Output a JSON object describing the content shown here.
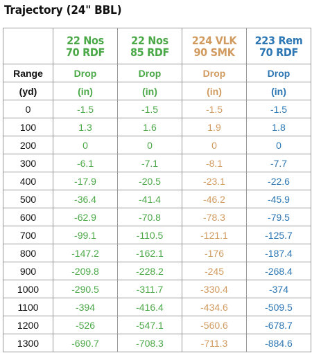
{
  "title": "Trajectory (24\" BBL)",
  "colors": {
    "green": "#4aa847",
    "orange": "#d19a5f",
    "blue": "#2b76b3"
  },
  "columns": [
    {
      "line1": "22 Nos",
      "line2": "70 RDF",
      "color": "green"
    },
    {
      "line1": "22 Nos",
      "line2": "85 RDF",
      "color": "green"
    },
    {
      "line1": "224 VLK",
      "line2": "90 SMK",
      "color": "orange"
    },
    {
      "line1": "223 Rem",
      "line2": "70 RDF",
      "color": "blue"
    }
  ],
  "label_row1": {
    "range": "Range",
    "drop": "Drop"
  },
  "label_row2": {
    "range": "(yd)",
    "unit": "(in)"
  },
  "rows": [
    {
      "range": "0",
      "values": [
        "-1.5",
        "-1.5",
        "-1.5",
        "-1.5"
      ]
    },
    {
      "range": "100",
      "values": [
        "1.3",
        "1.6",
        "1.9",
        "1.8"
      ]
    },
    {
      "range": "200",
      "values": [
        "0",
        "0",
        "0",
        "0"
      ]
    },
    {
      "range": "300",
      "values": [
        "-6.1",
        "-7.1",
        "-8.1",
        "-7.7"
      ]
    },
    {
      "range": "400",
      "values": [
        "-17.9",
        "-20.5",
        "-23.1",
        "-22.6"
      ]
    },
    {
      "range": "500",
      "values": [
        "-36.4",
        "-41.4",
        "-46.2",
        "-45.9"
      ]
    },
    {
      "range": "600",
      "values": [
        "-62.9",
        "-70.8",
        "-78.3",
        "-79.5"
      ]
    },
    {
      "range": "700",
      "values": [
        "-99.1",
        "-110.5",
        "-121.1",
        "-125.7"
      ]
    },
    {
      "range": "800",
      "values": [
        "-147.2",
        "-162.1",
        "-176",
        "-187.4"
      ]
    },
    {
      "range": "900",
      "values": [
        "-209.8",
        "-228.2",
        "-245",
        "-268.4"
      ]
    },
    {
      "range": "1000",
      "values": [
        "-290.5",
        "-311.7",
        "-330.4",
        "-374"
      ]
    },
    {
      "range": "1100",
      "values": [
        "-394",
        "-416.4",
        "-434.6",
        "-509.5"
      ]
    },
    {
      "range": "1200",
      "values": [
        "-526",
        "-547.1",
        "-560.6",
        "-678.7"
      ]
    },
    {
      "range": "1300",
      "values": [
        "-690.7",
        "-708.3",
        "-711.3",
        "-884.6"
      ]
    }
  ]
}
